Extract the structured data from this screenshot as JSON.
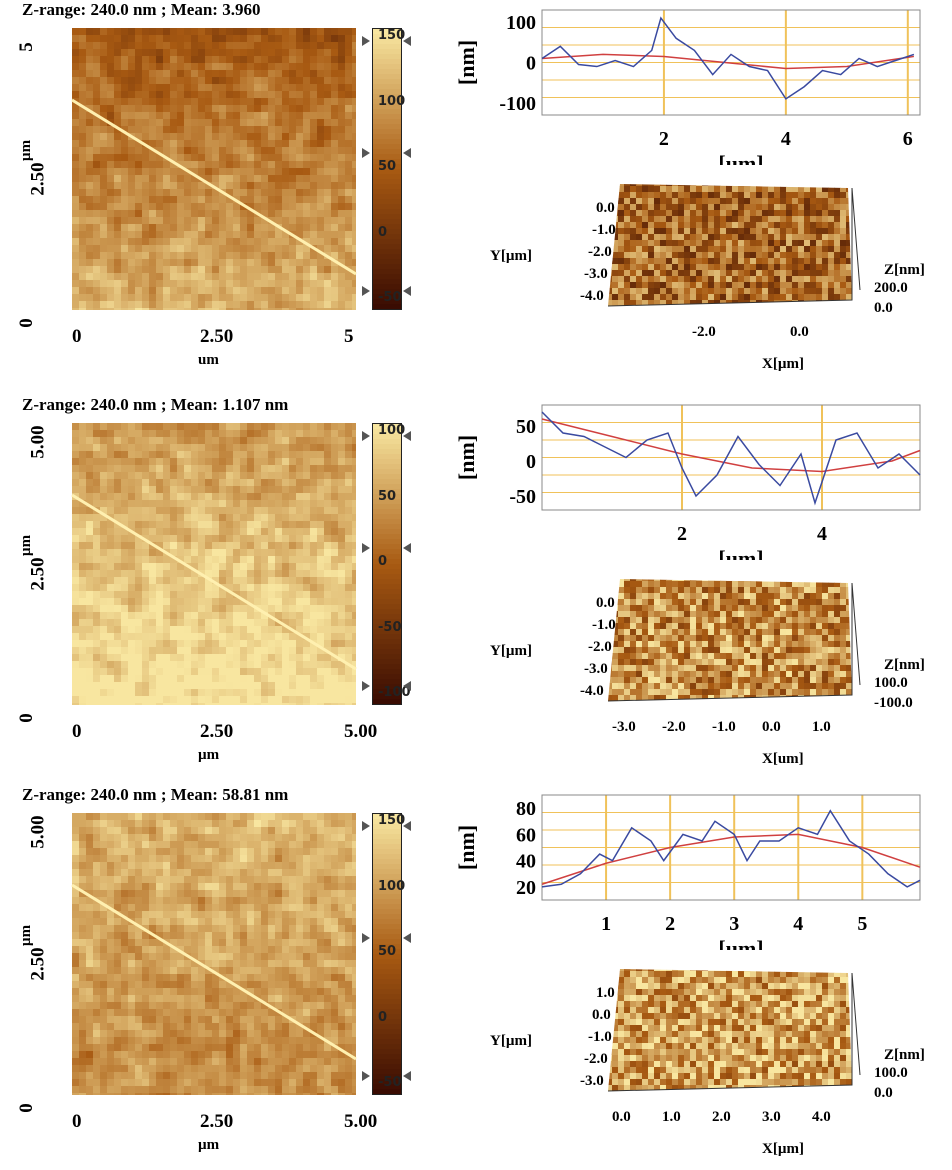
{
  "colors": {
    "afm_dark": "#3a0c02",
    "afm_mid": "#a85a12",
    "afm_light": "#f8e6a0",
    "scan_line": "#fff0b0",
    "profile_grid": "#f0c25a",
    "profile_measured": "#3a4aa0",
    "profile_fit": "#d04040"
  },
  "panels": [
    {
      "zrange": "Z-range:  240.0 nm ; Mean:  3.960",
      "seed": 11,
      "brightness": 0.0,
      "bottom_light": 0.35,
      "map": {
        "xticks": [
          "0",
          "2.50",
          "5"
        ],
        "xunit": "um",
        "yticks": [
          "0",
          "2.50",
          "5"
        ],
        "yunit": "µm",
        "colorbar_ticks": [
          "150",
          "100",
          "50",
          "0",
          "-50"
        ]
      },
      "profile": {
        "yunit": "[nm]",
        "xunit": "[um]",
        "yticks": [
          "100",
          "0",
          "-100"
        ],
        "xticks": [
          "2",
          "4",
          "6"
        ],
        "ylim": [
          -130,
          130
        ],
        "xlim": [
          0,
          6.2
        ],
        "ytick_values": [
          100,
          0,
          -100
        ],
        "xtick_values": [
          2,
          4,
          6
        ],
        "measured": [
          [
            0,
            10
          ],
          [
            0.3,
            40
          ],
          [
            0.6,
            -5
          ],
          [
            0.9,
            -10
          ],
          [
            1.2,
            5
          ],
          [
            1.5,
            -10
          ],
          [
            1.8,
            30
          ],
          [
            1.95,
            110
          ],
          [
            2.2,
            60
          ],
          [
            2.5,
            30
          ],
          [
            2.8,
            -30
          ],
          [
            3.1,
            20
          ],
          [
            3.4,
            -10
          ],
          [
            3.7,
            -20
          ],
          [
            4.0,
            -90
          ],
          [
            4.3,
            -60
          ],
          [
            4.6,
            -20
          ],
          [
            4.9,
            -30
          ],
          [
            5.2,
            10
          ],
          [
            5.5,
            -10
          ],
          [
            5.8,
            5
          ],
          [
            6.1,
            20
          ]
        ],
        "fit": [
          [
            0,
            10
          ],
          [
            1,
            20
          ],
          [
            2,
            15
          ],
          [
            3,
            0
          ],
          [
            4,
            -15
          ],
          [
            5,
            -10
          ],
          [
            6.1,
            15
          ]
        ]
      },
      "surface3d": {
        "ylabel": "Y[µm]",
        "xlabel": "X[µm]",
        "zlabel": "Z[nm]",
        "yticks": [
          "0.0",
          "-1.0",
          "-2.0",
          "-3.0",
          "-4.0"
        ],
        "xticks": [
          "-2.0",
          "0.0"
        ],
        "zticks": [
          "200.0",
          "0.0"
        ]
      }
    },
    {
      "zrange": "Z-range:  240.0 nm ; Mean:  1.107 nm",
      "seed": 23,
      "brightness": 0.25,
      "bottom_light": 0.3,
      "map": {
        "xticks": [
          "0",
          "2.50",
          "5.00"
        ],
        "xunit": "µm",
        "yticks": [
          "0",
          "2.50",
          "5.00"
        ],
        "yunit": "µm",
        "colorbar_ticks": [
          "100",
          "50",
          "0",
          "-50",
          "-100"
        ]
      },
      "profile": {
        "yunit": "[nm]",
        "xunit": "[um]",
        "yticks": [
          "50",
          "0",
          "-50"
        ],
        "xticks": [
          "2",
          "4"
        ],
        "ylim": [
          -70,
          80
        ],
        "xlim": [
          0,
          5.4
        ],
        "ytick_values": [
          50,
          0,
          -50
        ],
        "xtick_values": [
          2,
          4
        ],
        "measured": [
          [
            0,
            70
          ],
          [
            0.3,
            40
          ],
          [
            0.6,
            35
          ],
          [
            0.9,
            20
          ],
          [
            1.2,
            5
          ],
          [
            1.5,
            30
          ],
          [
            1.8,
            40
          ],
          [
            2.0,
            -10
          ],
          [
            2.2,
            -50
          ],
          [
            2.5,
            -20
          ],
          [
            2.8,
            35
          ],
          [
            3.1,
            -5
          ],
          [
            3.4,
            -35
          ],
          [
            3.7,
            10
          ],
          [
            3.9,
            -60
          ],
          [
            4.2,
            30
          ],
          [
            4.5,
            40
          ],
          [
            4.8,
            -10
          ],
          [
            5.1,
            10
          ],
          [
            5.4,
            -20
          ]
        ],
        "fit": [
          [
            0,
            60
          ],
          [
            1,
            35
          ],
          [
            2,
            10
          ],
          [
            3,
            -10
          ],
          [
            4,
            -15
          ],
          [
            5,
            0
          ],
          [
            5.4,
            15
          ]
        ]
      },
      "surface3d": {
        "ylabel": "Y[µm]",
        "xlabel": "X[um]",
        "zlabel": "Z[nm]",
        "yticks": [
          "0.0",
          "-1.0",
          "-2.0",
          "-3.0",
          "-4.0"
        ],
        "xticks": [
          "-3.0",
          "-2.0",
          "-1.0",
          "0.0",
          "1.0"
        ],
        "zticks": [
          "100.0",
          "-100.0"
        ]
      }
    },
    {
      "zrange": "Z-range:  240.0 nm ; Mean:  58.81 nm",
      "seed": 37,
      "brightness": 0.35,
      "bottom_light": -0.15,
      "map": {
        "xticks": [
          "0",
          "2.50",
          "5.00"
        ],
        "xunit": "µm",
        "yticks": [
          "0",
          "2.50",
          "5.00"
        ],
        "yunit": "µm",
        "colorbar_ticks": [
          "150",
          "100",
          "50",
          "0",
          "-50"
        ]
      },
      "profile": {
        "yunit": "[nm]",
        "xunit": "[um]",
        "yticks": [
          "80",
          "60",
          "40",
          "20"
        ],
        "xticks": [
          "1",
          "2",
          "3",
          "4",
          "5"
        ],
        "ylim": [
          10,
          90
        ],
        "xlim": [
          0,
          5.9
        ],
        "ytick_values": [
          80,
          60,
          40,
          20
        ],
        "xtick_values": [
          1,
          2,
          3,
          4,
          5
        ],
        "measured": [
          [
            0,
            20
          ],
          [
            0.3,
            22
          ],
          [
            0.6,
            30
          ],
          [
            0.9,
            45
          ],
          [
            1.1,
            40
          ],
          [
            1.4,
            65
          ],
          [
            1.7,
            55
          ],
          [
            1.9,
            40
          ],
          [
            2.2,
            60
          ],
          [
            2.5,
            55
          ],
          [
            2.7,
            70
          ],
          [
            3.0,
            60
          ],
          [
            3.2,
            40
          ],
          [
            3.4,
            55
          ],
          [
            3.7,
            55
          ],
          [
            4.0,
            65
          ],
          [
            4.3,
            60
          ],
          [
            4.5,
            78
          ],
          [
            4.8,
            55
          ],
          [
            5.1,
            45
          ],
          [
            5.4,
            30
          ],
          [
            5.7,
            20
          ],
          [
            5.9,
            25
          ]
        ],
        "fit": [
          [
            0,
            22
          ],
          [
            1,
            38
          ],
          [
            2,
            50
          ],
          [
            3,
            58
          ],
          [
            4,
            60
          ],
          [
            5,
            50
          ],
          [
            5.9,
            35
          ]
        ]
      },
      "surface3d": {
        "ylabel": "Y[µm]",
        "xlabel": "X[µm]",
        "zlabel": "Z[nm]",
        "yticks": [
          "1.0",
          "0.0",
          "-1.0",
          "-2.0",
          "-3.0"
        ],
        "xticks": [
          "0.0",
          "1.0",
          "2.0",
          "3.0",
          "4.0"
        ],
        "zticks": [
          "100.0",
          "0.0"
        ]
      }
    }
  ]
}
